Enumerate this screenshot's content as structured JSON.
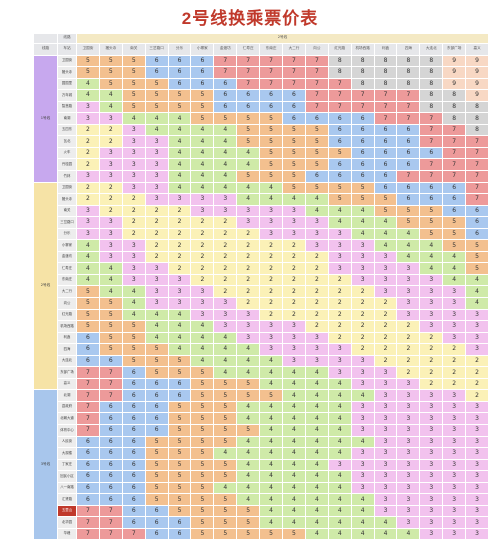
{
  "title": "2号线换乘票价表",
  "header": {
    "line_corner": "线路",
    "station_corner": "车站",
    "row_line_corner": "线路",
    "line_label": "2号线"
  },
  "columns": [
    "卫国街",
    "猪头寺",
    "南关",
    "三岔路口",
    "分乐",
    "小寨家",
    "金渡坊",
    "仁寿庄",
    "东南庄",
    "大二行",
    "向公",
    "红光路",
    "机场西路",
    "利鑫",
    "四海",
    "大连北",
    "东部广场",
    "高义"
  ],
  "groups": [
    {
      "label": "1号线",
      "start": 0,
      "count": 11,
      "color": "#c7a8ee"
    },
    {
      "label": "2号线",
      "start": 11,
      "count": 18,
      "color": "#f6e3a6"
    },
    {
      "label": "3号线",
      "start": 29,
      "count": 13,
      "color": "#a8c6ec"
    }
  ],
  "highlight_row": 39,
  "rows": [
    {
      "station": "卫国街",
      "fares": [
        5,
        5,
        5,
        6,
        6,
        6,
        7,
        7,
        7,
        7,
        7,
        8,
        8,
        8,
        8,
        8,
        9,
        9
      ]
    },
    {
      "station": "猪头寺",
      "fares": [
        5,
        5,
        5,
        6,
        6,
        6,
        7,
        7,
        7,
        7,
        7,
        8,
        8,
        8,
        8,
        8,
        9,
        9
      ]
    },
    {
      "station": "园国里",
      "fares": [
        4,
        5,
        5,
        5,
        6,
        6,
        6,
        7,
        7,
        7,
        7,
        7,
        8,
        8,
        8,
        8,
        9,
        9
      ]
    },
    {
      "station": "万年城",
      "fares": [
        4,
        4,
        5,
        5,
        5,
        5,
        6,
        6,
        6,
        6,
        7,
        7,
        7,
        7,
        7,
        8,
        8,
        9
      ]
    },
    {
      "station": "智慧路",
      "fares": [
        3,
        4,
        5,
        5,
        5,
        5,
        6,
        6,
        6,
        6,
        7,
        7,
        7,
        7,
        7,
        8,
        8,
        8
      ]
    },
    {
      "station": "南湖",
      "fares": [
        3,
        3,
        4,
        4,
        4,
        5,
        5,
        5,
        5,
        6,
        6,
        6,
        6,
        7,
        7,
        7,
        8,
        8
      ]
    },
    {
      "station": "五四东",
      "fares": [
        2,
        2,
        3,
        4,
        4,
        4,
        4,
        5,
        5,
        5,
        5,
        6,
        6,
        6,
        6,
        7,
        7,
        8
      ]
    },
    {
      "station": "瓦北",
      "fares": [
        2,
        2,
        3,
        3,
        4,
        4,
        4,
        5,
        5,
        5,
        5,
        6,
        6,
        6,
        6,
        7,
        7,
        7
      ]
    },
    {
      "station": "火车",
      "fares": [
        2,
        3,
        3,
        3,
        4,
        4,
        4,
        4,
        5,
        5,
        5,
        5,
        6,
        6,
        6,
        6,
        7,
        7
      ]
    },
    {
      "station": "丹桂园",
      "fares": [
        2,
        3,
        3,
        3,
        4,
        4,
        4,
        4,
        5,
        5,
        5,
        6,
        6,
        6,
        6,
        7,
        7,
        7
      ]
    },
    {
      "station": "竹林",
      "fares": [
        3,
        3,
        3,
        3,
        4,
        4,
        4,
        5,
        5,
        5,
        6,
        6,
        6,
        6,
        7,
        7,
        7,
        7
      ]
    },
    {
      "station": "卫国街",
      "fares": [
        2,
        2,
        3,
        3,
        4,
        4,
        4,
        4,
        4,
        5,
        5,
        5,
        5,
        6,
        6,
        6,
        6,
        7
      ]
    },
    {
      "station": "猪头寺",
      "fares": [
        2,
        2,
        2,
        3,
        3,
        3,
        3,
        4,
        4,
        4,
        4,
        5,
        5,
        5,
        6,
        6,
        6,
        7
      ]
    },
    {
      "station": "南关",
      "fares": [
        3,
        2,
        2,
        2,
        2,
        3,
        3,
        3,
        3,
        3,
        4,
        4,
        4,
        5,
        5,
        5,
        6,
        6
      ]
    },
    {
      "station": "三岔路口",
      "fares": [
        3,
        3,
        2,
        2,
        2,
        2,
        2,
        3,
        3,
        3,
        3,
        4,
        4,
        4,
        5,
        5,
        5,
        6
      ]
    },
    {
      "station": "分乐",
      "fares": [
        3,
        3,
        2,
        2,
        2,
        2,
        2,
        2,
        3,
        3,
        3,
        3,
        4,
        4,
        4,
        5,
        5,
        6
      ]
    },
    {
      "station": "小寨家",
      "fares": [
        4,
        3,
        3,
        2,
        2,
        2,
        2,
        2,
        2,
        2,
        3,
        3,
        3,
        4,
        4,
        4,
        5,
        5
      ]
    },
    {
      "station": "金渡坊",
      "fares": [
        4,
        3,
        3,
        2,
        2,
        2,
        2,
        2,
        2,
        2,
        2,
        3,
        3,
        3,
        4,
        4,
        4,
        5
      ]
    },
    {
      "station": "仁寿庄",
      "fares": [
        4,
        4,
        3,
        3,
        2,
        2,
        2,
        2,
        2,
        2,
        2,
        3,
        3,
        3,
        3,
        4,
        4,
        5
      ]
    },
    {
      "station": "东南庄",
      "fares": [
        4,
        4,
        3,
        3,
        3,
        2,
        2,
        2,
        2,
        2,
        2,
        2,
        3,
        3,
        3,
        3,
        4,
        4
      ]
    },
    {
      "station": "大二行",
      "fares": [
        5,
        4,
        4,
        3,
        3,
        3,
        2,
        2,
        2,
        2,
        2,
        2,
        2,
        3,
        3,
        3,
        3,
        4
      ]
    },
    {
      "station": "向公",
      "fares": [
        5,
        5,
        4,
        3,
        3,
        3,
        3,
        2,
        2,
        2,
        2,
        2,
        2,
        2,
        3,
        3,
        3,
        4
      ]
    },
    {
      "station": "红光路",
      "fares": [
        5,
        5,
        4,
        4,
        4,
        3,
        3,
        3,
        2,
        2,
        2,
        2,
        2,
        2,
        3,
        3,
        3,
        3
      ]
    },
    {
      "station": "机场西路",
      "fares": [
        5,
        5,
        5,
        4,
        4,
        4,
        3,
        3,
        3,
        3,
        2,
        2,
        2,
        2,
        2,
        3,
        3,
        3
      ]
    },
    {
      "station": "利鑫",
      "fares": [
        6,
        5,
        5,
        4,
        4,
        4,
        4,
        3,
        3,
        3,
        3,
        2,
        2,
        2,
        2,
        2,
        3,
        3
      ]
    },
    {
      "station": "四海",
      "fares": [
        6,
        5,
        5,
        5,
        4,
        4,
        4,
        4,
        3,
        3,
        3,
        3,
        2,
        2,
        2,
        2,
        2,
        3
      ]
    },
    {
      "station": "大连北",
      "fares": [
        6,
        6,
        5,
        5,
        5,
        4,
        4,
        4,
        4,
        3,
        3,
        3,
        3,
        2,
        2,
        2,
        2,
        2
      ]
    },
    {
      "station": "东部广场",
      "fares": [
        7,
        7,
        6,
        5,
        5,
        5,
        4,
        4,
        4,
        4,
        4,
        3,
        3,
        3,
        2,
        2,
        2,
        2
      ]
    },
    {
      "station": "高义",
      "fares": [
        7,
        7,
        6,
        6,
        6,
        5,
        5,
        5,
        4,
        4,
        4,
        4,
        3,
        3,
        3,
        2,
        2,
        2
      ]
    },
    {
      "station": "北湖",
      "fares": [
        7,
        7,
        6,
        6,
        6,
        5,
        5,
        5,
        5,
        4,
        4,
        4,
        4,
        3,
        3,
        3,
        3,
        2
      ]
    },
    {
      "station": "县政府",
      "fares": [
        7,
        6,
        6,
        6,
        5,
        5,
        5,
        4,
        4,
        4,
        4,
        4,
        3,
        3,
        3,
        3,
        3,
        3
      ]
    },
    {
      "station": "北朝大道",
      "fares": [
        7,
        6,
        6,
        6,
        5,
        5,
        5,
        4,
        4,
        4,
        4,
        4,
        3,
        3,
        3,
        3,
        3,
        3
      ]
    },
    {
      "station": "体育中心",
      "fares": [
        7,
        6,
        6,
        6,
        5,
        5,
        5,
        5,
        4,
        4,
        4,
        4,
        3,
        3,
        3,
        3,
        3,
        3
      ]
    },
    {
      "station": "人民街",
      "fares": [
        6,
        6,
        6,
        5,
        5,
        5,
        5,
        4,
        4,
        4,
        4,
        4,
        4,
        3,
        3,
        3,
        3,
        3
      ]
    },
    {
      "station": "大观楼",
      "fares": [
        6,
        6,
        6,
        5,
        5,
        5,
        4,
        4,
        4,
        4,
        4,
        4,
        3,
        3,
        3,
        3,
        3,
        3
      ]
    },
    {
      "station": "丁家庄",
      "fares": [
        6,
        6,
        6,
        5,
        5,
        5,
        5,
        4,
        4,
        4,
        4,
        3,
        3,
        3,
        3,
        3,
        3,
        3
      ]
    },
    {
      "station": "回民小区",
      "fares": [
        6,
        6,
        6,
        5,
        5,
        5,
        5,
        4,
        4,
        4,
        4,
        4,
        3,
        3,
        3,
        3,
        3,
        3
      ]
    },
    {
      "station": "八一南路",
      "fares": [
        6,
        6,
        6,
        5,
        5,
        5,
        4,
        4,
        4,
        4,
        4,
        4,
        3,
        3,
        3,
        3,
        3,
        3
      ]
    },
    {
      "station": "汇贤路",
      "fares": [
        6,
        6,
        6,
        5,
        5,
        5,
        5,
        4,
        4,
        4,
        4,
        4,
        4,
        3,
        3,
        3,
        3,
        3
      ]
    },
    {
      "station": "五里山",
      "fares": [
        7,
        7,
        6,
        6,
        5,
        5,
        5,
        5,
        4,
        4,
        4,
        4,
        4,
        3,
        3,
        3,
        3,
        3
      ]
    },
    {
      "station": "北华园",
      "fares": [
        7,
        7,
        6,
        6,
        6,
        5,
        5,
        5,
        4,
        4,
        4,
        4,
        4,
        4,
        3,
        3,
        3,
        3
      ]
    },
    {
      "station": "华峰",
      "fares": [
        7,
        7,
        7,
        6,
        6,
        5,
        5,
        5,
        5,
        5,
        4,
        4,
        4,
        4,
        4,
        3,
        3,
        3
      ]
    }
  ],
  "fare_colors": {
    "2": "#fbf1b7",
    "3": "#f2c2ee",
    "4": "#cfeaa8",
    "5": "#f3c08f",
    "6": "#a9c8ef",
    "7": "#ed9a9a",
    "8": "#d5d5d5",
    "9": "#f8d8c4"
  }
}
